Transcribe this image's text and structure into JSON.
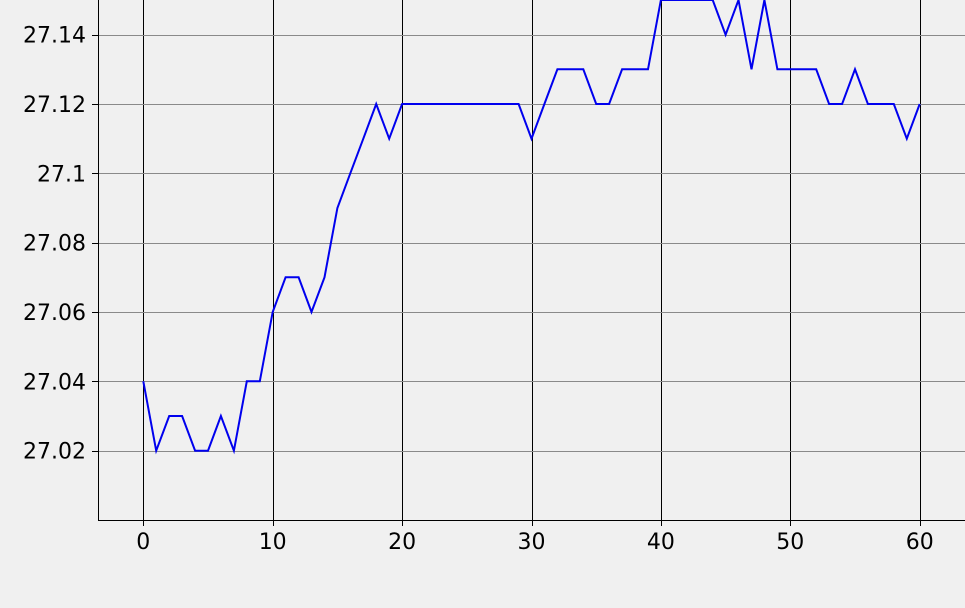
{
  "chart_data": {
    "type": "line",
    "title": "",
    "xlabel": "",
    "ylabel": "",
    "xlim": [
      -3.5,
      63.5
    ],
    "ylim": [
      27.0,
      27.15
    ],
    "x_ticks": [
      0,
      10,
      20,
      30,
      40,
      50,
      60
    ],
    "x_tick_labels": [
      "0",
      "10",
      "20",
      "30",
      "40",
      "50",
      "60"
    ],
    "y_ticks": [
      27.02,
      27.04,
      27.06,
      27.08,
      27.1,
      27.12,
      27.14
    ],
    "y_tick_labels": [
      "27.02",
      "27.04",
      "27.06",
      "27.08",
      "27.1",
      "27.12",
      "27.14"
    ],
    "grid": true,
    "legend": "none",
    "background_color": "#f0f0f0",
    "series": [
      {
        "color": "#0000ee",
        "x": [
          0,
          1,
          2,
          3,
          4,
          5,
          6,
          7,
          8,
          9,
          10,
          11,
          12,
          13,
          14,
          15,
          16,
          17,
          18,
          19,
          20,
          21,
          22,
          23,
          24,
          25,
          26,
          27,
          28,
          29,
          30,
          31,
          32,
          33,
          34,
          35,
          36,
          37,
          38,
          39,
          40,
          41,
          42,
          43,
          44,
          45,
          46,
          47,
          48,
          49,
          50,
          51,
          52,
          53,
          54,
          55,
          56,
          57,
          58,
          59,
          60
        ],
        "values": [
          27.04,
          27.02,
          27.03,
          27.03,
          27.02,
          27.02,
          27.03,
          27.02,
          27.04,
          27.04,
          27.06,
          27.07,
          27.07,
          27.06,
          27.07,
          27.09,
          27.1,
          27.11,
          27.12,
          27.11,
          27.12,
          27.12,
          27.12,
          27.12,
          27.12,
          27.12,
          27.12,
          27.12,
          27.12,
          27.12,
          27.11,
          27.12,
          27.13,
          27.13,
          27.13,
          27.12,
          27.12,
          27.13,
          27.13,
          27.13,
          27.15,
          27.15,
          27.15,
          27.15,
          27.15,
          27.14,
          27.15,
          27.13,
          27.15,
          27.13,
          27.13,
          27.13,
          27.13,
          27.12,
          27.12,
          27.13,
          27.12,
          27.12,
          27.12,
          27.11,
          27.12
        ]
      }
    ]
  }
}
